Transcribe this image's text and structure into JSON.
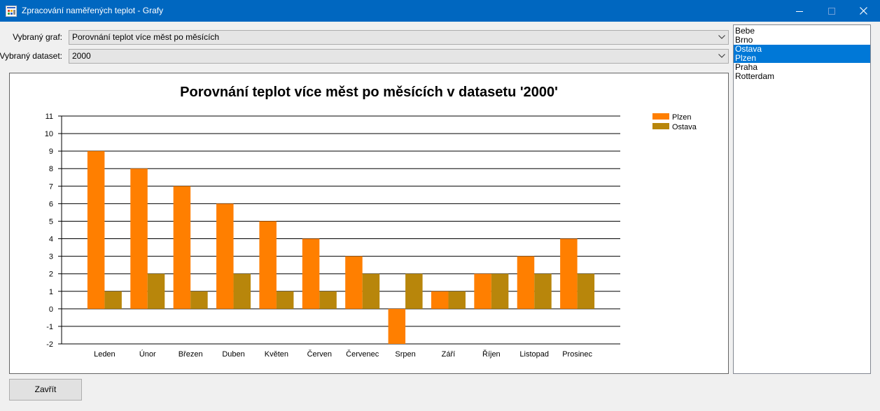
{
  "window": {
    "title": "Zpracování naměřených teplot - Grafy",
    "controls": [
      "minimize-icon",
      "maximize-icon",
      "close-icon"
    ]
  },
  "form": {
    "graph_label": "Vybraný graf:",
    "graph_value": "Porovnání teplot více měst po měsících",
    "dataset_label": "Vybraný dataset:",
    "dataset_value": "2000"
  },
  "cities": {
    "items": [
      {
        "label": "Bebe",
        "selected": false
      },
      {
        "label": "Brno",
        "selected": false
      },
      {
        "label": "Ostava",
        "selected": true
      },
      {
        "label": "Plzen",
        "selected": true
      },
      {
        "label": "Praha",
        "selected": false
      },
      {
        "label": "Rotterdam",
        "selected": false
      }
    ]
  },
  "buttons": {
    "close_label": "Zavřít"
  },
  "colors": {
    "titlebar": "#0067c0",
    "selection": "#0078d7",
    "series_plzen": "#ff7f00",
    "series_ostava": "#b8860b"
  },
  "chart_data": {
    "type": "bar",
    "title": "Porovnání teplot více měst po měsících v datasetu '2000'",
    "categories": [
      "Leden",
      "Únor",
      "Březen",
      "Duben",
      "Květen",
      "Červen",
      "Červenec",
      "Srpen",
      "Září",
      "Říjen",
      "Listopad",
      "Prosinec"
    ],
    "series": [
      {
        "name": "Plzen",
        "color": "#ff7f00",
        "values": [
          9,
          8,
          7,
          6,
          5,
          4,
          3,
          -2,
          1,
          2,
          3,
          4
        ]
      },
      {
        "name": "Ostava",
        "color": "#b8860b",
        "values": [
          1,
          2,
          1,
          2,
          1,
          1,
          2,
          2,
          1,
          2,
          2,
          2
        ]
      }
    ],
    "ylim": [
      -2,
      11
    ],
    "yticks": [
      "11",
      "10",
      "9",
      "8",
      "7",
      "6",
      "5",
      "4",
      "3",
      "2",
      "1",
      "0",
      "-1",
      "-2"
    ],
    "grid": true,
    "legend_position": "top-right"
  }
}
